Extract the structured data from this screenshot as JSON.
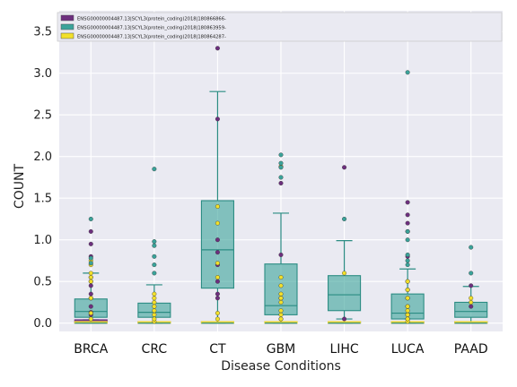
{
  "chart_data": {
    "type": "box",
    "title": "",
    "xlabel": "Disease Conditions",
    "ylabel": "COUNT",
    "ylim": [
      -0.1,
      3.75
    ],
    "yticks": [
      0.0,
      0.5,
      1.0,
      1.5,
      2.0,
      2.5,
      3.0,
      3.5
    ],
    "ytick_labels": [
      "0.0",
      "0.5",
      "1.0",
      "1.5",
      "2.0",
      "2.5",
      "3.0",
      "3.5"
    ],
    "grid": true,
    "legend_position": "top-left",
    "categories": [
      "BRCA",
      "CRC",
      "CT",
      "GBM",
      "LIHC",
      "LUCA",
      "PAAD"
    ],
    "series": [
      {
        "name": "ENSG00000004487.13|SCYL3(protein_coding)2018|180866866-",
        "color": "#6d2f7e",
        "boxes": [
          {
            "q1": 0.0,
            "median": 0.0,
            "q3": 0.04,
            "whislo": 0.0,
            "whishi": 0.04,
            "fliers": [
              0.1,
              0.13,
              0.2,
              0.3,
              0.35,
              0.45,
              0.5,
              0.55,
              0.8,
              0.95,
              1.1
            ]
          },
          {
            "q1": 0.0,
            "median": 0.0,
            "q3": 0.0,
            "whislo": 0.0,
            "whishi": 0.0,
            "fliers": []
          },
          {
            "q1": 0.0,
            "median": 0.0,
            "q3": 0.0,
            "whislo": 0.0,
            "whishi": 0.0,
            "fliers": [
              0.3,
              0.35,
              0.5,
              0.7,
              0.85,
              1.0,
              2.45,
              3.3,
              3.65
            ]
          },
          {
            "q1": 0.0,
            "median": 0.0,
            "q3": 0.0,
            "whislo": 0.0,
            "whishi": 0.0,
            "fliers": [
              0.05,
              0.3,
              0.82,
              1.68
            ]
          },
          {
            "q1": 0.0,
            "median": 0.0,
            "q3": 0.0,
            "whislo": 0.0,
            "whishi": 0.0,
            "fliers": [
              0.05,
              1.87
            ]
          },
          {
            "q1": 0.0,
            "median": 0.0,
            "q3": 0.0,
            "whislo": 0.0,
            "whishi": 0.0,
            "fliers": [
              0.05,
              0.1,
              0.2,
              0.3,
              0.4,
              0.5,
              0.8,
              1.1,
              1.2,
              1.3,
              1.45
            ]
          },
          {
            "q1": 0.0,
            "median": 0.0,
            "q3": 0.0,
            "whislo": 0.0,
            "whishi": 0.0,
            "fliers": [
              0.2,
              0.45
            ]
          }
        ]
      },
      {
        "name": "ENSG00000004487.13|SCYL3(protein_coding)2018|180863959-",
        "color": "#3aa39a",
        "boxes": [
          {
            "q1": 0.07,
            "median": 0.14,
            "q3": 0.29,
            "whislo": 0.0,
            "whishi": 0.6,
            "fliers": [
              0.72,
              0.78,
              1.25
            ]
          },
          {
            "q1": 0.07,
            "median": 0.13,
            "q3": 0.24,
            "whislo": 0.0,
            "whishi": 0.46,
            "fliers": [
              0.6,
              0.7,
              0.8,
              0.93,
              0.98,
              1.85
            ]
          },
          {
            "q1": 0.42,
            "median": 0.88,
            "q3": 1.47,
            "whislo": 0.0,
            "whishi": 2.78,
            "fliers": []
          },
          {
            "q1": 0.1,
            "median": 0.21,
            "q3": 0.71,
            "whislo": 0.0,
            "whishi": 1.32,
            "fliers": [
              1.75,
              1.87,
              1.92,
              2.02
            ]
          },
          {
            "q1": 0.15,
            "median": 0.34,
            "q3": 0.57,
            "whislo": 0.05,
            "whishi": 0.99,
            "fliers": [
              1.25
            ]
          },
          {
            "q1": 0.05,
            "median": 0.12,
            "q3": 0.35,
            "whislo": 0.0,
            "whishi": 0.65,
            "fliers": [
              0.7,
              0.75,
              0.82,
              1.0,
              1.1,
              3.01
            ]
          },
          {
            "q1": 0.07,
            "median": 0.14,
            "q3": 0.25,
            "whislo": 0.0,
            "whishi": 0.44,
            "fliers": [
              0.6,
              0.91
            ]
          }
        ]
      },
      {
        "name": "ENSG00000004487.13|SCYL3(protein_coding)2018|180864287-",
        "color": "#f2e02a",
        "boxes": [
          {
            "q1": 0.0,
            "median": 0.0,
            "q3": 0.0,
            "whislo": 0.0,
            "whishi": 0.0,
            "fliers": [
              0.05,
              0.12,
              0.3,
              0.5,
              0.55,
              0.6,
              0.7,
              0.75
            ]
          },
          {
            "q1": 0.0,
            "median": 0.0,
            "q3": 0.0,
            "whislo": 0.0,
            "whishi": 0.0,
            "fliers": [
              0.02,
              0.05,
              0.1,
              0.15,
              0.2,
              0.25,
              0.3,
              0.35
            ]
          },
          {
            "q1": 0.0,
            "median": 0.0,
            "q3": 0.0,
            "whislo": 0.0,
            "whishi": 0.0,
            "fliers": [
              0.05,
              0.12,
              0.55,
              0.72,
              1.2,
              1.4
            ]
          },
          {
            "q1": 0.0,
            "median": 0.0,
            "q3": 0.0,
            "whislo": 0.0,
            "whishi": 0.0,
            "fliers": [
              0.05,
              0.1,
              0.15,
              0.25,
              0.3,
              0.35,
              0.45,
              0.55,
              1.88
            ]
          },
          {
            "q1": 0.0,
            "median": 0.0,
            "q3": 0.0,
            "whislo": 0.0,
            "whishi": 0.0,
            "fliers": [
              0.6
            ]
          },
          {
            "q1": 0.0,
            "median": 0.0,
            "q3": 0.0,
            "whislo": 0.0,
            "whishi": 0.0,
            "fliers": [
              0.02,
              0.05,
              0.1,
              0.15,
              0.2,
              0.3,
              0.4,
              0.5
            ]
          },
          {
            "q1": 0.0,
            "median": 0.0,
            "q3": 0.0,
            "whislo": 0.0,
            "whishi": 0.0,
            "fliers": [
              0.25,
              0.3
            ]
          }
        ]
      }
    ]
  }
}
